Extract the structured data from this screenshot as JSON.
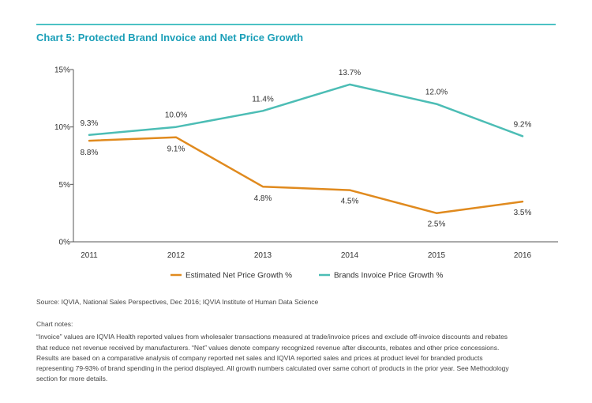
{
  "title": "Chart 5: Protected Brand Invoice and Net Price Growth",
  "source": "Source: IQVIA, National Sales Perspectives, Dec 2016;  IQVIA Institute of Human Data Science",
  "notes": {
    "heading": "Chart notes:",
    "lines": [
      "“Invoice” values are IQVIA Health reported values from wholesaler transactions measured at trade/invoice prices and exclude off-invoice discounts and rebates",
      "that reduce net revenue received by manufacturers. “Net” values denote company recognized revenue after discounts, rebates and other price concessions.",
      "Results are based on a comparative analysis of company reported net sales and IQVIA reported sales and prices at product level for branded products",
      "representing 79-93% of brand spending in the period displayed. All growth numbers calculated over same cohort of products in the prior year. See Methodology",
      "section for more details."
    ]
  },
  "chart_data": {
    "type": "line",
    "x": [
      "2011",
      "2012",
      "2013",
      "2014",
      "2015",
      "2016"
    ],
    "ylim": [
      0,
      15
    ],
    "yticks": [
      0,
      5,
      10,
      15
    ],
    "ytick_labels": [
      "0%",
      "5%",
      "10%",
      "15%"
    ],
    "grid": false,
    "legend_position": "bottom",
    "series": [
      {
        "name": "Estimated Net Price Growth %",
        "color": "#e08a1e",
        "values": [
          8.8,
          9.1,
          4.8,
          4.5,
          2.5,
          3.5
        ],
        "labels": [
          "8.8%",
          "9.1%",
          "4.8%",
          "4.5%",
          "2.5%",
          "3.5%"
        ]
      },
      {
        "name": "Brands Invoice Price Growth %",
        "color": "#4cbdb5",
        "values": [
          9.3,
          10.0,
          11.4,
          13.7,
          12.0,
          9.2
        ],
        "labels": [
          "9.3%",
          "10.0%",
          "11.4%",
          "13.7%",
          "12.0%",
          "9.2%"
        ]
      }
    ]
  }
}
